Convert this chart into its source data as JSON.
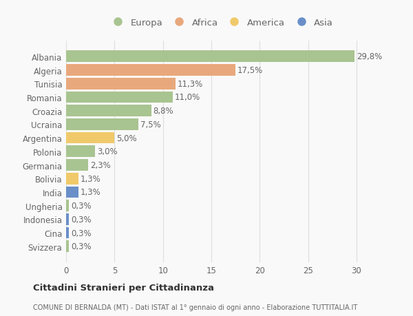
{
  "countries": [
    "Albania",
    "Algeria",
    "Tunisia",
    "Romania",
    "Croazia",
    "Ucraina",
    "Argentina",
    "Polonia",
    "Germania",
    "Bolivia",
    "India",
    "Ungheria",
    "Indonesia",
    "Cina",
    "Svizzera"
  ],
  "values": [
    29.8,
    17.5,
    11.3,
    11.0,
    8.8,
    7.5,
    5.0,
    3.0,
    2.3,
    1.3,
    1.3,
    0.3,
    0.3,
    0.3,
    0.3
  ],
  "labels": [
    "29,8%",
    "17,5%",
    "11,3%",
    "11,0%",
    "8,8%",
    "7,5%",
    "5,0%",
    "3,0%",
    "2,3%",
    "1,3%",
    "1,3%",
    "0,3%",
    "0,3%",
    "0,3%",
    "0,3%"
  ],
  "continents": [
    "Europa",
    "Africa",
    "Africa",
    "Europa",
    "Europa",
    "Europa",
    "America",
    "Europa",
    "Europa",
    "America",
    "Asia",
    "Europa",
    "Asia",
    "Asia",
    "Europa"
  ],
  "colors": {
    "Europa": "#a8c490",
    "Africa": "#e8a87c",
    "America": "#f0c96a",
    "Asia": "#6a8fc8"
  },
  "legend_order": [
    "Europa",
    "Africa",
    "America",
    "Asia"
  ],
  "xlim": [
    0,
    32
  ],
  "xticks": [
    0,
    5,
    10,
    15,
    20,
    25,
    30
  ],
  "title": "Cittadini Stranieri per Cittadinanza",
  "subtitle": "COMUNE DI BERNALDA (MT) - Dati ISTAT al 1° gennaio di ogni anno - Elaborazione TUTTITALIA.IT",
  "background_color": "#f9f9f9",
  "grid_color": "#dddddd",
  "bar_height": 0.85,
  "text_color": "#666666",
  "label_fontsize": 8.5,
  "tick_fontsize": 8.5,
  "legend_fontsize": 9.5
}
